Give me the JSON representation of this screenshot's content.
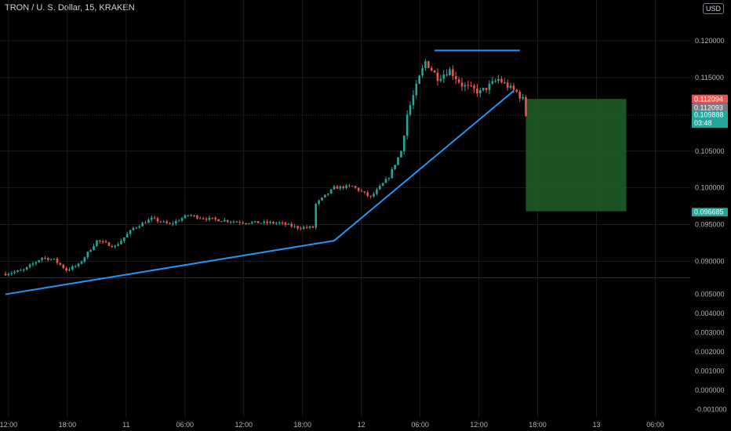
{
  "header": {
    "title": "TRON / U. S. Dollar, 15, KRAKEN",
    "currency": "USD"
  },
  "colors": {
    "up": "#26a69a",
    "down": "#ef5350",
    "trendline": "#2196f3",
    "target_zone": "#1e5a28",
    "grid": "#1c1c1c"
  },
  "chart_data": [
    {
      "type": "candlestick",
      "title": "TRON / U. S. Dollar, 15, KRAKEN",
      "x_tick_labels": [
        "12:00",
        "18:00",
        "11",
        "06:00",
        "12:00",
        "18:00",
        "12",
        "06:00",
        "12:00",
        "18:00",
        "13",
        "06:00"
      ],
      "y_tick_labels": [
        "0.120000",
        "0.115000",
        "0.105000",
        "0.100000",
        "0.095000",
        "0.090000"
      ],
      "ylim": [
        0.0878,
        0.1245
      ],
      "price_path": [
        {
          "t": 0,
          "p": 0.0883
        },
        {
          "t": 6,
          "p": 0.0888
        },
        {
          "t": 12,
          "p": 0.0905
        },
        {
          "t": 16,
          "p": 0.0902
        },
        {
          "t": 20,
          "p": 0.0888
        },
        {
          "t": 24,
          "p": 0.0895
        },
        {
          "t": 30,
          "p": 0.0928
        },
        {
          "t": 36,
          "p": 0.092
        },
        {
          "t": 42,
          "p": 0.0945
        },
        {
          "t": 48,
          "p": 0.0958
        },
        {
          "t": 54,
          "p": 0.095
        },
        {
          "t": 60,
          "p": 0.0963
        },
        {
          "t": 66,
          "p": 0.0958
        },
        {
          "t": 78,
          "p": 0.0953
        },
        {
          "t": 90,
          "p": 0.0952
        },
        {
          "t": 96,
          "p": 0.0946
        },
        {
          "t": 101,
          "p": 0.0946
        },
        {
          "t": 102,
          "p": 0.0978
        },
        {
          "t": 108,
          "p": 0.1
        },
        {
          "t": 114,
          "p": 0.1002
        },
        {
          "t": 120,
          "p": 0.0987
        },
        {
          "t": 126,
          "p": 0.1015
        },
        {
          "t": 130,
          "p": 0.105
        },
        {
          "t": 132,
          "p": 0.11
        },
        {
          "t": 136,
          "p": 0.115
        },
        {
          "t": 138,
          "p": 0.1172
        },
        {
          "t": 142,
          "p": 0.115
        },
        {
          "t": 146,
          "p": 0.116
        },
        {
          "t": 150,
          "p": 0.114
        },
        {
          "t": 156,
          "p": 0.113
        },
        {
          "t": 162,
          "p": 0.1148
        },
        {
          "t": 166,
          "p": 0.1135
        },
        {
          "t": 168,
          "p": 0.113
        },
        {
          "t": 170,
          "p": 0.112
        },
        {
          "t": 171,
          "p": 0.1099
        }
      ],
      "trendline": [
        {
          "t": 0,
          "p": 0.0855
        },
        {
          "t": 108,
          "p": 0.0928
        },
        {
          "t": 167,
          "p": 0.1132
        }
      ],
      "resistance_line": {
        "t_start": 141,
        "t_end": 169,
        "p": 0.1187
      },
      "target_zone": {
        "t_start": 171,
        "t_end": 204,
        "p_top": 0.1121,
        "p_bottom": 0.0968
      },
      "current_price_line": 0.1099,
      "price_labels": [
        {
          "value": "0.112094",
          "color": "#ef5350",
          "text_color": "#ffffff"
        },
        {
          "value": "0.112093",
          "color": "#787b86",
          "text_color": "#ffffff"
        },
        {
          "value": "0.109888",
          "sub": "03:48",
          "color": "#26a69a",
          "text_color": "#ffffff"
        },
        {
          "value": "0.096685",
          "color": "#26a69a",
          "text_color": "#ffffff"
        }
      ]
    },
    {
      "type": "line",
      "y_tick_labels": [
        "0.005000",
        "0.004000",
        "0.003000",
        "0.002000",
        "0.001000",
        "0.000000",
        "-0.001000"
      ],
      "ylim": [
        -0.0013,
        0.0058
      ]
    }
  ]
}
